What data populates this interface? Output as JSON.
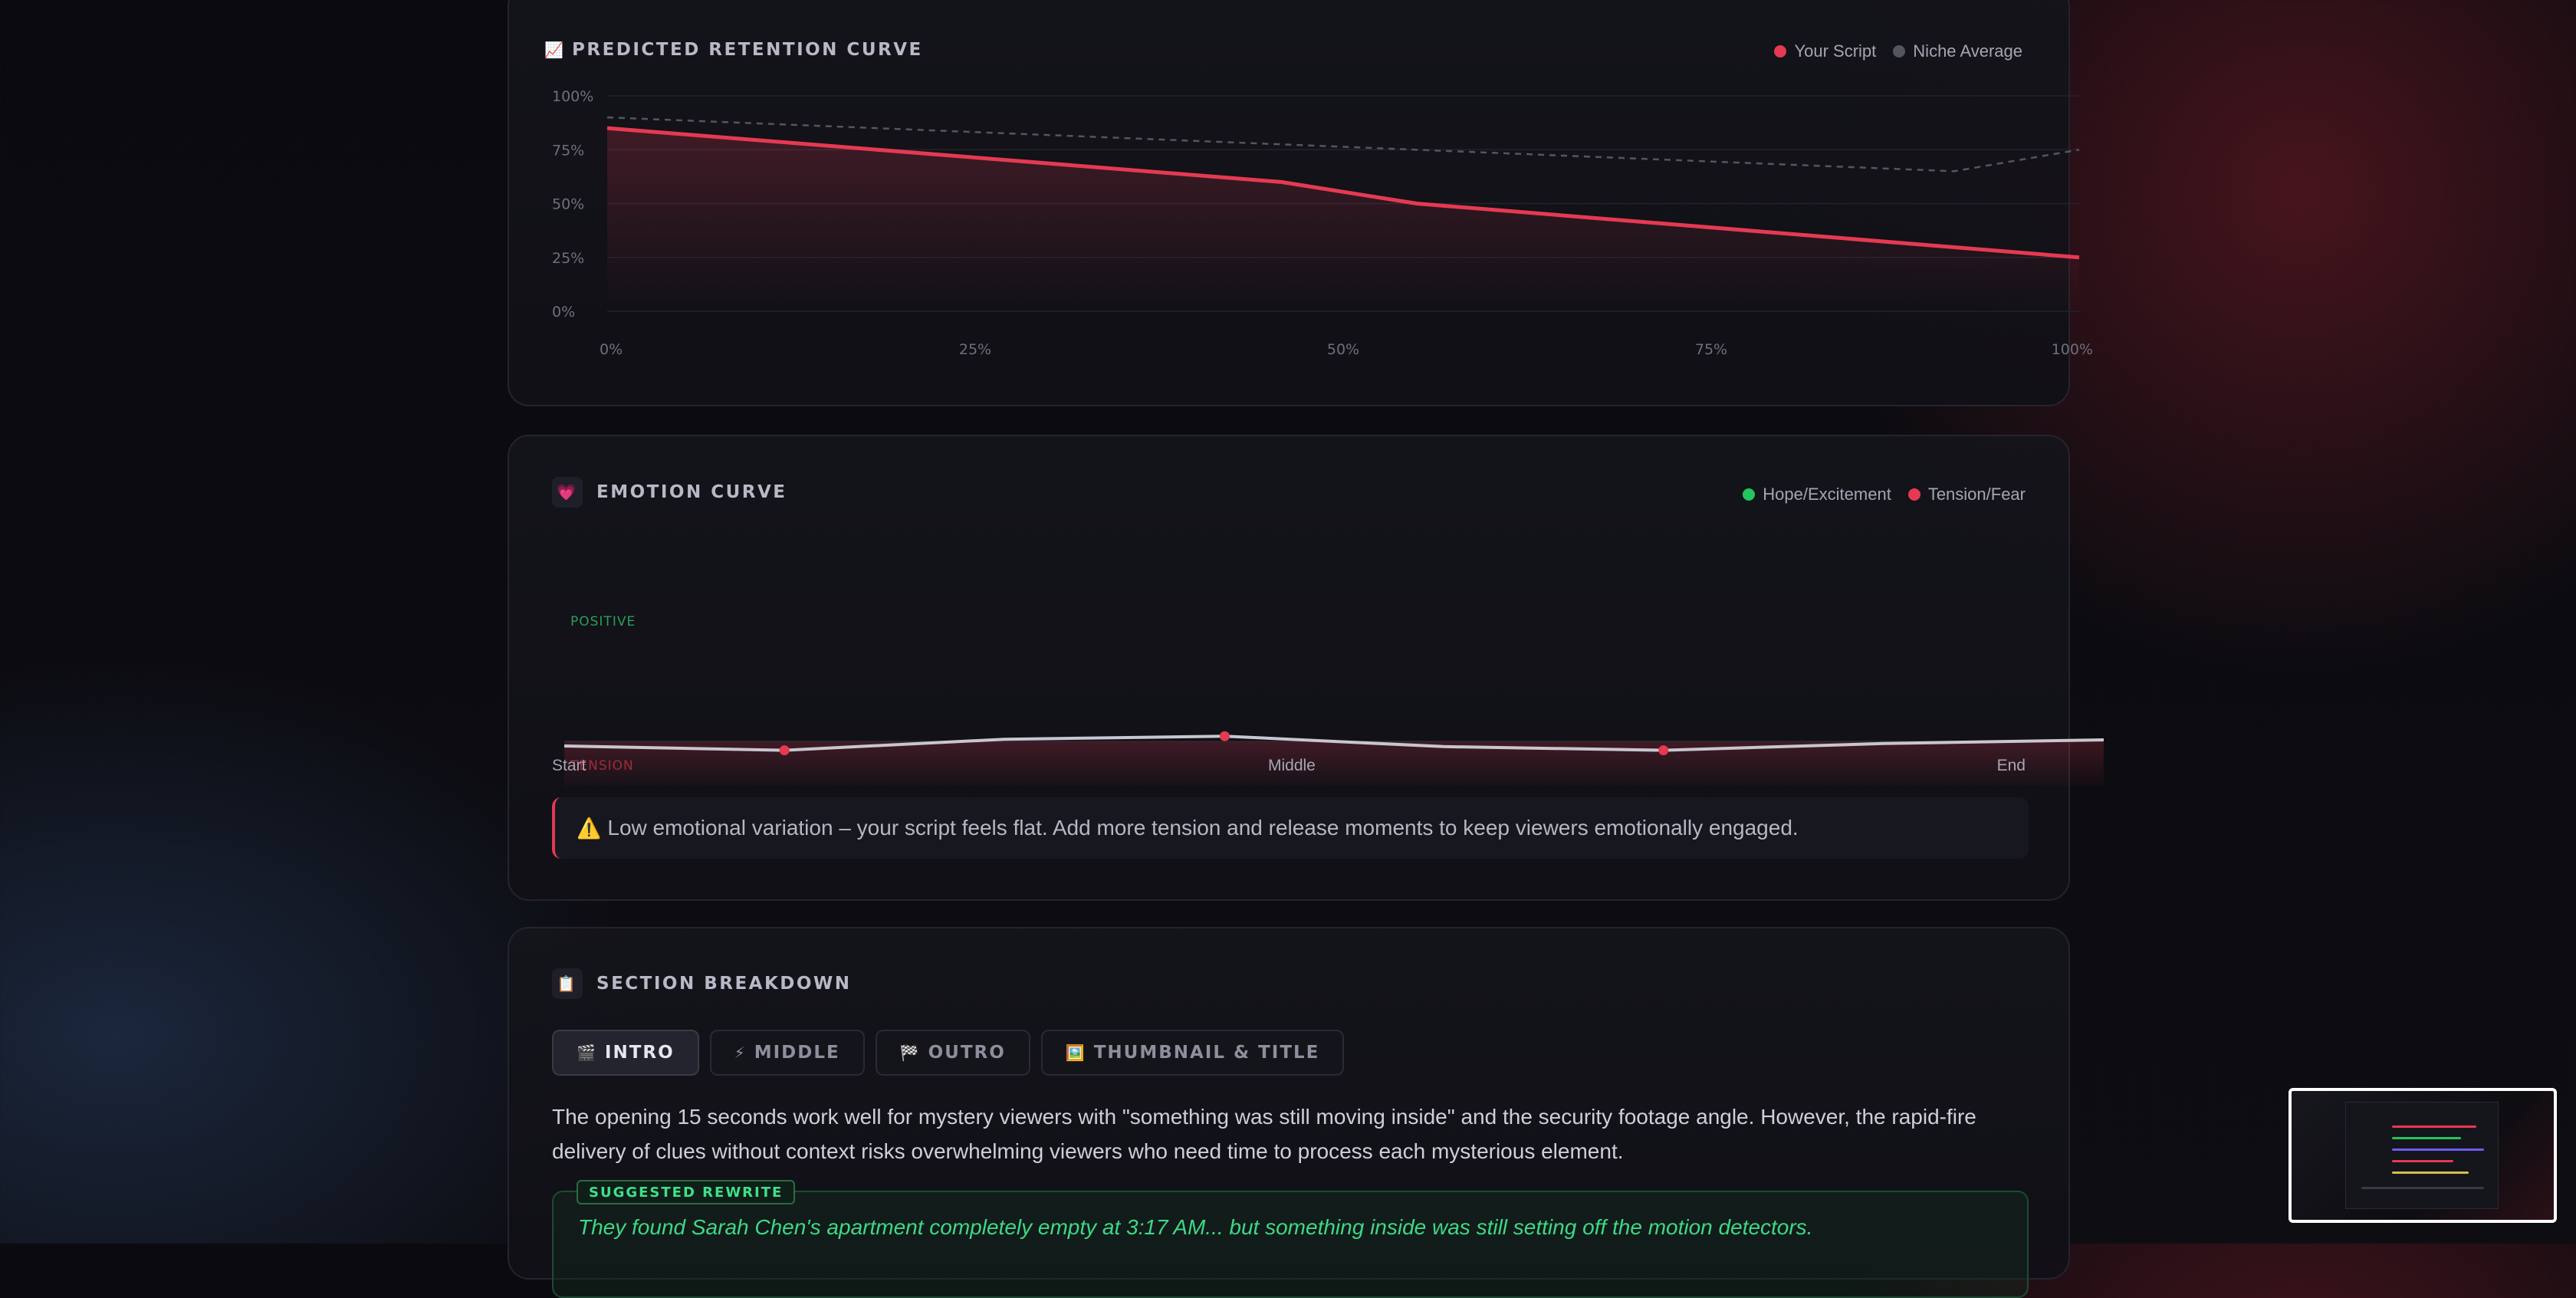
{
  "retention": {
    "icon": "chart-increasing-icon",
    "title": "PREDICTED RETENTION CURVE",
    "legend": [
      {
        "label": "Your Script",
        "color": "#e53a52"
      },
      {
        "label": "Niche Average",
        "color": "#55555f"
      }
    ]
  },
  "emotion": {
    "icon": "heart-icon",
    "title": "EMOTION CURVE",
    "legend": [
      {
        "label": "Hope/Excitement",
        "color": "#22c55e"
      },
      {
        "label": "Tension/Fear",
        "color": "#e53a52"
      }
    ],
    "positive_label": "POSITIVE",
    "tension_label": "TENSION",
    "axis": {
      "start": "Start",
      "middle": "Middle",
      "end": "End"
    },
    "warning_icon": "warning-icon",
    "warning": "Low emotional variation – your script feels flat. Add more tension and release moments to keep viewers emotionally engaged."
  },
  "section": {
    "icon": "clipboard-icon",
    "title": "SECTION BREAKDOWN",
    "tabs": [
      {
        "icon": "clapper-icon",
        "label": "INTRO",
        "active": true
      },
      {
        "icon": "lightning-icon",
        "label": "MIDDLE",
        "active": false
      },
      {
        "icon": "checkered-flag-icon",
        "label": "OUTRO",
        "active": false
      },
      {
        "icon": "picture-icon",
        "label": "THUMBNAIL & TITLE",
        "active": false
      }
    ],
    "text": "The opening 15 seconds work well for mystery viewers with \"something was still moving inside\" and the security footage angle. However, the rapid-fire delivery of clues without context risks overwhelming viewers who need time to process each mysterious element.",
    "rewrite_badge": "SUGGESTED REWRITE",
    "rewrite_text": "They found Sarah Chen's apartment completely empty at 3:17 AM... but something inside was still setting off the motion detectors."
  },
  "chart_data": [
    {
      "type": "line",
      "x": [
        0,
        45.8,
        55,
        100
      ],
      "x_ticks": [
        "0%",
        "25%",
        "50%",
        "75%",
        "100%"
      ],
      "y_ticks": [
        "0%",
        "25%",
        "50%",
        "75%",
        "100%"
      ],
      "ylim": [
        0,
        100
      ],
      "xlim": [
        0,
        100
      ],
      "grid": true,
      "legend_position": "top-right",
      "series": [
        {
          "name": "Your Script",
          "color": "#e53a52",
          "x": [
            0,
            45.8,
            55,
            100
          ],
          "values": [
            85,
            60,
            50,
            25
          ]
        },
        {
          "name": "Niche Average",
          "color": "#55555f",
          "x": [
            0,
            91.5,
            100
          ],
          "values": [
            90,
            65,
            75
          ]
        }
      ]
    },
    {
      "type": "line",
      "x": [
        0,
        14.3,
        28.6,
        42.9,
        57.1,
        71.4,
        85.7,
        100
      ],
      "values": [
        -0.25,
        -0.6,
        0.3,
        0.55,
        -0.3,
        -0.6,
        -0.05,
        0.25
      ],
      "marked_points": [
        1,
        3,
        5
      ],
      "ylim": [
        -3,
        3
      ],
      "x_ticks": [
        "Start",
        "Middle",
        "End"
      ]
    }
  ]
}
